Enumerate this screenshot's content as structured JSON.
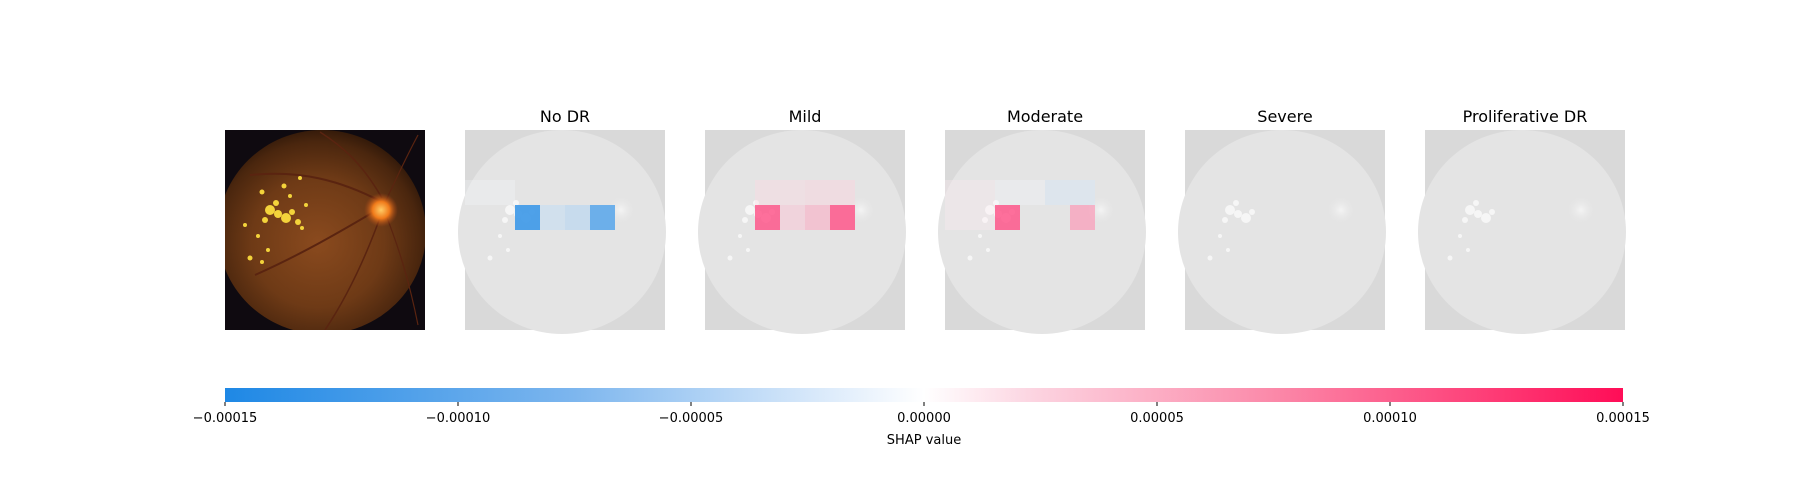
{
  "chart_data": {
    "type": "heatmap",
    "description_kind": "shap-image-explanation",
    "input_panel": {
      "title": ""
    },
    "class_panels": [
      {
        "title": "No DR",
        "cells": [
          {
            "row": 2,
            "col": 0,
            "value": -5e-06
          },
          {
            "row": 2,
            "col": 1,
            "value": -5e-06
          },
          {
            "row": 3,
            "col": 2,
            "value": -0.00013
          },
          {
            "row": 3,
            "col": 3,
            "value": -4.5e-05
          },
          {
            "row": 3,
            "col": 4,
            "value": -5.5e-05
          },
          {
            "row": 3,
            "col": 5,
            "value": -0.000115
          }
        ]
      },
      {
        "title": "Mild",
        "cells": [
          {
            "row": 2,
            "col": 2,
            "value": 2.5e-05
          },
          {
            "row": 2,
            "col": 3,
            "value": 2.5e-05
          },
          {
            "row": 2,
            "col": 4,
            "value": 3e-05
          },
          {
            "row": 2,
            "col": 5,
            "value": 3e-05
          },
          {
            "row": 3,
            "col": 2,
            "value": 0.00011
          },
          {
            "row": 3,
            "col": 3,
            "value": 4e-05
          },
          {
            "row": 3,
            "col": 4,
            "value": 5.5e-05
          },
          {
            "row": 3,
            "col": 5,
            "value": 0.00011
          }
        ]
      },
      {
        "title": "Moderate",
        "cells": [
          {
            "row": 2,
            "col": 0,
            "value": 1.2e-05
          },
          {
            "row": 2,
            "col": 1,
            "value": 1.2e-05
          },
          {
            "row": 2,
            "col": 2,
            "value": -8e-06
          },
          {
            "row": 2,
            "col": 3,
            "value": -8e-06
          },
          {
            "row": 2,
            "col": 4,
            "value": -3e-05
          },
          {
            "row": 2,
            "col": 5,
            "value": -3e-05
          },
          {
            "row": 3,
            "col": 0,
            "value": 1.2e-05
          },
          {
            "row": 3,
            "col": 1,
            "value": 1.2e-05
          },
          {
            "row": 3,
            "col": 2,
            "value": 0.00011
          },
          {
            "row": 3,
            "col": 5,
            "value": 7e-05
          }
        ]
      },
      {
        "title": "Severe",
        "cells": []
      },
      {
        "title": "Proliferative DR",
        "cells": []
      }
    ],
    "colorbar": {
      "min": -0.00015,
      "max": 0.00015,
      "ticks": [
        "−0.00015",
        "−0.00010",
        "−0.00005",
        "0.00000",
        "0.00005",
        "0.00010",
        "0.00015"
      ],
      "tick_values": [
        -0.00015,
        -0.0001,
        -5e-05,
        0,
        5e-05,
        0.0001,
        0.00015
      ],
      "label": "SHAP value",
      "negative_color": "#1E88E5",
      "positive_color": "#FF0D57"
    }
  }
}
